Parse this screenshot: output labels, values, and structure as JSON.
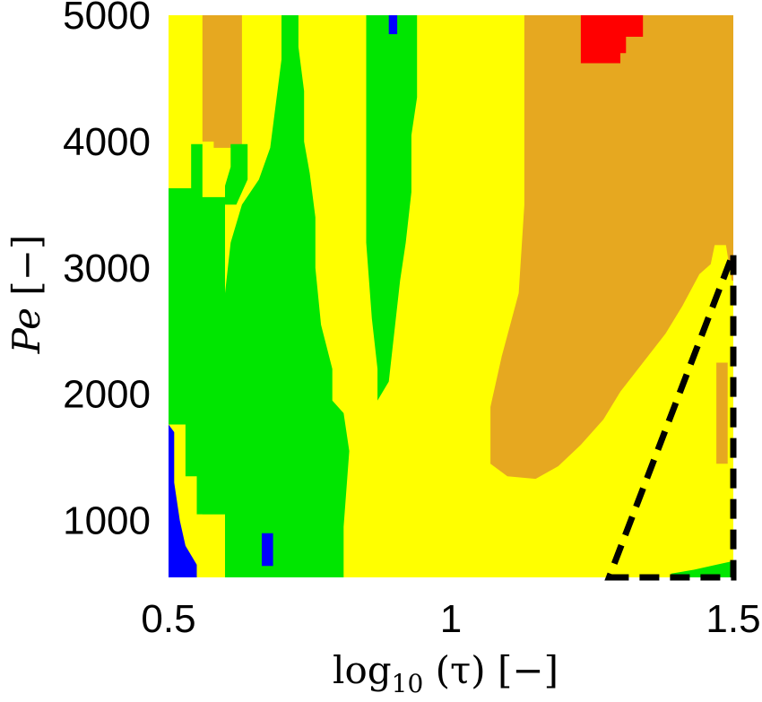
{
  "chart_data": {
    "type": "heatmap",
    "title": "",
    "xlabel": {
      "base": "log",
      "sub": "10",
      "rest": " (τ) [−]"
    },
    "ylabel": {
      "main": "Pe",
      "rest": " [−]"
    },
    "xlim": [
      0.5,
      1.5
    ],
    "ylim": [
      550,
      5000
    ],
    "xticks": [
      {
        "value": 0.5,
        "label": "0.5"
      },
      {
        "value": 1,
        "label": "1"
      },
      {
        "value": 1.5,
        "label": "1.5"
      }
    ],
    "yticks": [
      {
        "value": 1000,
        "label": "1000"
      },
      {
        "value": 2000,
        "label": "2000"
      },
      {
        "value": 3000,
        "label": "3000"
      },
      {
        "value": 4000,
        "label": "4000"
      },
      {
        "value": 5000,
        "label": "5000"
      }
    ],
    "grid": false,
    "colors": {
      "background_class": "#ffff00",
      "orange": "#e6a820",
      "green": "#00e600",
      "blue": "#0000ff",
      "red": "#ff0000",
      "dashed_outline": "#000000"
    },
    "regions": [
      {
        "class": "orange",
        "polygon": [
          [
            0.63,
            5000
          ],
          [
            0.63,
            3950
          ],
          [
            0.58,
            3950
          ],
          [
            0.58,
            4000
          ],
          [
            0.56,
            4000
          ],
          [
            0.56,
            5000
          ]
        ]
      },
      {
        "class": "orange",
        "polygon": [
          [
            1.13,
            5000
          ],
          [
            1.5,
            5000
          ],
          [
            1.5,
            2900
          ],
          [
            1.497,
            2900
          ],
          [
            1.487,
            3180
          ],
          [
            1.467,
            3180
          ],
          [
            1.46,
            3030
          ],
          [
            1.44,
            2950
          ],
          [
            1.41,
            2700
          ],
          [
            1.38,
            2480
          ],
          [
            1.34,
            2250
          ],
          [
            1.3,
            2020
          ],
          [
            1.27,
            1800
          ],
          [
            1.23,
            1600
          ],
          [
            1.19,
            1430
          ],
          [
            1.15,
            1330
          ],
          [
            1.1,
            1350
          ],
          [
            1.07,
            1450
          ],
          [
            1.07,
            1900
          ],
          [
            1.09,
            2300
          ],
          [
            1.12,
            2800
          ],
          [
            1.13,
            3500
          ],
          [
            1.13,
            4000
          ]
        ]
      },
      {
        "class": "orange",
        "polygon": [
          [
            1.47,
            2250
          ],
          [
            1.49,
            2250
          ],
          [
            1.49,
            1450
          ],
          [
            1.47,
            1450
          ]
        ]
      },
      {
        "class": "green",
        "polygon": [
          [
            0.5,
            3630
          ],
          [
            0.5,
            1760
          ],
          [
            0.53,
            1760
          ],
          [
            0.53,
            1350
          ],
          [
            0.56,
            1350
          ],
          [
            0.56,
            1050
          ],
          [
            0.6,
            1050
          ],
          [
            0.6,
            3560
          ],
          [
            0.56,
            3560
          ],
          [
            0.56,
            3980
          ],
          [
            0.54,
            3980
          ],
          [
            0.54,
            3630
          ]
        ]
      },
      {
        "class": "green",
        "polygon": [
          [
            0.6,
            3650
          ],
          [
            0.61,
            3800
          ],
          [
            0.61,
            3980
          ],
          [
            0.64,
            3980
          ],
          [
            0.64,
            3700
          ],
          [
            0.62,
            3500
          ],
          [
            0.6,
            3500
          ]
        ]
      },
      {
        "class": "green",
        "polygon": [
          [
            0.57,
            3000
          ],
          [
            0.58,
            2450
          ],
          [
            0.59,
            2100
          ],
          [
            0.6,
            1700
          ],
          [
            0.6,
            1050
          ],
          [
            0.55,
            1050
          ],
          [
            0.55,
            2400
          ],
          [
            0.56,
            3000
          ]
        ]
      },
      {
        "class": "green",
        "polygon": [
          [
            0.6,
            550
          ],
          [
            0.81,
            550
          ],
          [
            0.81,
            950
          ],
          [
            0.82,
            1550
          ],
          [
            0.81,
            1850
          ],
          [
            0.79,
            1950
          ],
          [
            0.79,
            2200
          ],
          [
            0.77,
            2550
          ],
          [
            0.76,
            3000
          ],
          [
            0.76,
            3400
          ],
          [
            0.75,
            3750
          ],
          [
            0.74,
            4000
          ],
          [
            0.74,
            4400
          ],
          [
            0.73,
            4750
          ],
          [
            0.73,
            5000
          ],
          [
            0.7,
            5000
          ],
          [
            0.7,
            4650
          ],
          [
            0.69,
            4300
          ],
          [
            0.68,
            3950
          ],
          [
            0.66,
            3700
          ],
          [
            0.63,
            3500
          ],
          [
            0.61,
            3200
          ],
          [
            0.6,
            2800
          ],
          [
            0.6,
            1800
          ],
          [
            0.6,
            950
          ]
        ]
      },
      {
        "class": "green",
        "polygon": [
          [
            0.85,
            5000
          ],
          [
            0.94,
            5000
          ],
          [
            0.94,
            4350
          ],
          [
            0.93,
            4050
          ],
          [
            0.93,
            3600
          ],
          [
            0.92,
            3200
          ],
          [
            0.91,
            2900
          ],
          [
            0.9,
            2500
          ],
          [
            0.89,
            2100
          ],
          [
            0.87,
            1950
          ],
          [
            0.87,
            2200
          ],
          [
            0.86,
            2600
          ],
          [
            0.85,
            3200
          ],
          [
            0.85,
            3700
          ],
          [
            0.85,
            4300
          ]
        ]
      },
      {
        "class": "green",
        "polygon": [
          [
            1.39,
            550
          ],
          [
            1.5,
            550
          ],
          [
            1.5,
            680
          ],
          [
            1.47,
            650
          ],
          [
            1.43,
            610
          ],
          [
            1.39,
            580
          ]
        ]
      },
      {
        "class": "blue",
        "polygon": [
          [
            0.5,
            550
          ],
          [
            0.55,
            550
          ],
          [
            0.55,
            650
          ],
          [
            0.53,
            800
          ],
          [
            0.52,
            1000
          ],
          [
            0.51,
            1300
          ],
          [
            0.51,
            1700
          ],
          [
            0.5,
            1760
          ]
        ]
      },
      {
        "class": "blue",
        "polygon": [
          [
            0.665,
            640
          ],
          [
            0.685,
            640
          ],
          [
            0.685,
            900
          ],
          [
            0.665,
            900
          ]
        ]
      },
      {
        "class": "blue",
        "polygon": [
          [
            0.89,
            5000
          ],
          [
            0.905,
            5000
          ],
          [
            0.905,
            4850
          ],
          [
            0.89,
            4850
          ]
        ]
      },
      {
        "class": "red",
        "polygon": [
          [
            1.23,
            5000
          ],
          [
            1.34,
            5000
          ],
          [
            1.34,
            4830
          ],
          [
            1.31,
            4830
          ],
          [
            1.31,
            4700
          ],
          [
            1.3,
            4700
          ],
          [
            1.3,
            4620
          ],
          [
            1.23,
            4620
          ]
        ]
      }
    ],
    "dashed_outline": [
      [
        1.28,
        550
      ],
      [
        1.5,
        550
      ],
      [
        1.5,
        3120
      ]
    ]
  }
}
